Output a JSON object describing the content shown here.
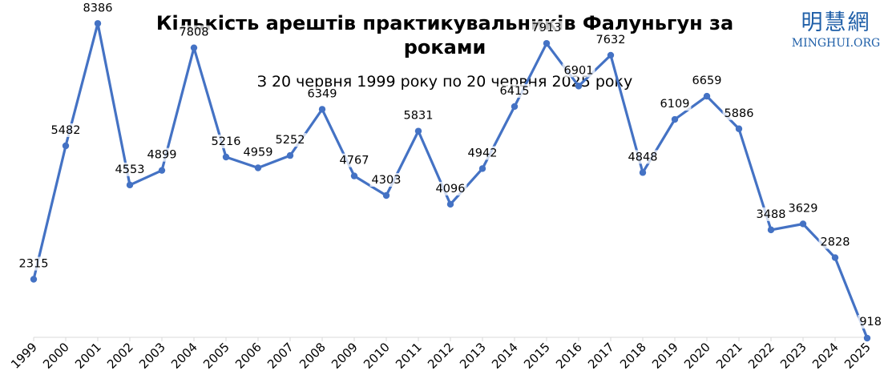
{
  "logo": {
    "cjk": "明慧網",
    "text": "MINGHUI.ORG"
  },
  "chart_data": {
    "type": "line",
    "title": "Кількість арештів практикувальників Фалуньгун за роками",
    "subtitle": "З 20 червня 1999 року по 20 червня 2025 року",
    "xlabel": "",
    "ylabel": "",
    "categories": [
      "1999",
      "2000",
      "2001",
      "2002",
      "2003",
      "2004",
      "2005",
      "2006",
      "2007",
      "2008",
      "2009",
      "2010",
      "2011",
      "2012",
      "2013",
      "2014",
      "2015",
      "2016",
      "2017",
      "2018",
      "2019",
      "2020",
      "2021",
      "2022",
      "2023",
      "2024",
      "2025"
    ],
    "series": [
      {
        "values": [
          2315,
          5482,
          8386,
          4553,
          4899,
          7808,
          5216,
          4959,
          5252,
          6349,
          4767,
          4303,
          5831,
          4096,
          4942,
          6415,
          7913,
          6901,
          7632,
          4848,
          6109,
          6659,
          5886,
          3488,
          3629,
          2828,
          918
        ]
      }
    ],
    "ylim": [
      0,
      9000
    ],
    "grid": false,
    "legend": "none",
    "colors": {
      "line": "#4472c4",
      "axis": "#d9d9d9"
    }
  }
}
